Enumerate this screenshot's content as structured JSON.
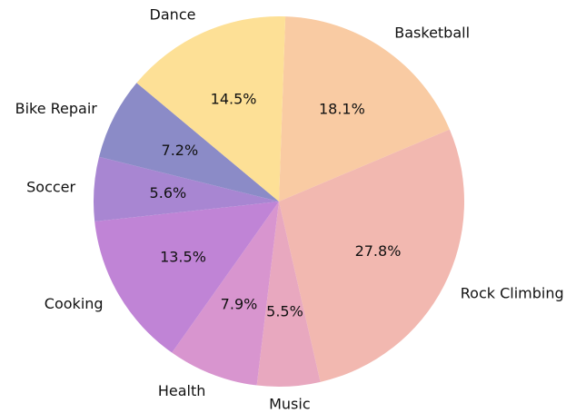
{
  "chart_data": {
    "type": "pie",
    "categories": [
      "Basketball",
      "Rock Climbing",
      "Music",
      "Health",
      "Cooking",
      "Soccer",
      "Bike Repair",
      "Dance"
    ],
    "values": [
      18.1,
      27.8,
      5.5,
      7.9,
      13.5,
      5.6,
      7.2,
      14.5
    ],
    "value_labels": [
      "18.1%",
      "27.8%",
      "5.5%",
      "7.9%",
      "13.5%",
      "5.6%",
      "7.2%",
      "14.5%"
    ],
    "colors": [
      "#f9cba3",
      "#f2b8b0",
      "#e8a8bf",
      "#d895cf",
      "#c084d6",
      "#a886d2",
      "#8b8bc7",
      "#fde096"
    ]
  }
}
